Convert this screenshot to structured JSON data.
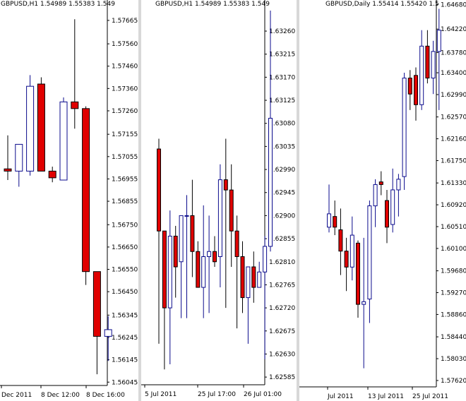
{
  "colors": {
    "bull": "#0a0a8c",
    "bear": "#e00000",
    "outline": "#000000",
    "axis": "#000000"
  },
  "chart_data": [
    {
      "type": "candlestick",
      "title": "GBPUSD,H1  1.54989 1.55383 1.549",
      "ylim": [
        1.5603,
        1.5775
      ],
      "y_ticks": [
        "1.57665",
        "1.57560",
        "1.57460",
        "1.57360",
        "1.57260",
        "1.57155",
        "1.57055",
        "1.56955",
        "1.56855",
        "1.56750",
        "1.56650",
        "1.56550",
        "1.56450",
        "1.56345",
        "1.56245",
        "1.56145",
        "1.56045"
      ],
      "x_labels": [
        "Dec 2011",
        "8 Dec 12:00",
        "8 Dec 16:00"
      ],
      "candles": [
        {
          "o": 1.57,
          "h": 1.5715,
          "l": 1.5695,
          "c": 1.5699
        },
        {
          "o": 1.5699,
          "h": 1.5711,
          "l": 1.5692,
          "c": 1.5711
        },
        {
          "o": 1.5699,
          "h": 1.5742,
          "l": 1.5697,
          "c": 1.5737
        },
        {
          "o": 1.5738,
          "h": 1.5741,
          "l": 1.5699,
          "c": 1.5699
        },
        {
          "o": 1.5699,
          "h": 1.5701,
          "l": 1.5694,
          "c": 1.5696
        },
        {
          "o": 1.5695,
          "h": 1.5732,
          "l": 1.5695,
          "c": 1.573
        },
        {
          "o": 1.573,
          "h": 1.5767,
          "l": 1.5718,
          "c": 1.5727
        },
        {
          "o": 1.5727,
          "h": 1.5728,
          "l": 1.5648,
          "c": 1.5654
        },
        {
          "o": 1.5654,
          "h": 1.5654,
          "l": 1.5608,
          "c": 1.5625
        },
        {
          "o": 1.5625,
          "h": 1.5634,
          "l": 1.5614,
          "c": 1.5628
        }
      ]
    },
    {
      "type": "candlestick",
      "title": "GBPUSD,H1  1.54989 1.55383 1.549",
      "ylim": [
        1.6257,
        1.633
      ],
      "y_ticks": [
        "1.63260",
        "1.63215",
        "1.63170",
        "1.63125",
        "1.63080",
        "1.63035",
        "1.62990",
        "1.62945",
        "1.62900",
        "1.62855",
        "1.62810",
        "1.62765",
        "1.62720",
        "1.62675",
        "1.62630",
        "1.62585"
      ],
      "x_labels": [
        "5 Jul 2011",
        "25 Jul 17:00",
        "26 Jul 01:00"
      ],
      "candles": [
        {
          "o": 1.6303,
          "h": 1.6305,
          "l": 1.6265,
          "c": 1.6287
        },
        {
          "o": 1.6287,
          "h": 1.6287,
          "l": 1.626,
          "c": 1.6272
        },
        {
          "o": 1.6272,
          "h": 1.6291,
          "l": 1.6261,
          "c": 1.6286
        },
        {
          "o": 1.6286,
          "h": 1.6288,
          "l": 1.6274,
          "c": 1.628
        },
        {
          "o": 1.6281,
          "h": 1.629,
          "l": 1.627,
          "c": 1.629
        },
        {
          "o": 1.629,
          "h": 1.6294,
          "l": 1.627,
          "c": 1.629
        },
        {
          "o": 1.629,
          "h": 1.6297,
          "l": 1.6278,
          "c": 1.6283
        },
        {
          "o": 1.6283,
          "h": 1.6285,
          "l": 1.6276,
          "c": 1.6276
        },
        {
          "o": 1.6276,
          "h": 1.6292,
          "l": 1.627,
          "c": 1.6282
        },
        {
          "o": 1.6282,
          "h": 1.629,
          "l": 1.6271,
          "c": 1.6283
        },
        {
          "o": 1.6283,
          "h": 1.6286,
          "l": 1.628,
          "c": 1.6281
        },
        {
          "o": 1.6282,
          "h": 1.63,
          "l": 1.6276,
          "c": 1.6297
        },
        {
          "o": 1.6297,
          "h": 1.6305,
          "l": 1.6272,
          "c": 1.6295
        },
        {
          "o": 1.6295,
          "h": 1.63,
          "l": 1.628,
          "c": 1.6287
        },
        {
          "o": 1.6287,
          "h": 1.629,
          "l": 1.6268,
          "c": 1.6282
        },
        {
          "o": 1.6282,
          "h": 1.6285,
          "l": 1.6271,
          "c": 1.6274
        },
        {
          "o": 1.6274,
          "h": 1.628,
          "l": 1.6265,
          "c": 1.628
        },
        {
          "o": 1.628,
          "h": 1.6283,
          "l": 1.6273,
          "c": 1.6276
        },
        {
          "o": 1.6276,
          "h": 1.6281,
          "l": 1.6276,
          "c": 1.6279
        },
        {
          "o": 1.6279,
          "h": 1.6286,
          "l": 1.6262,
          "c": 1.6284
        },
        {
          "o": 1.6284,
          "h": 1.633,
          "l": 1.6283,
          "c": 1.6309
        }
      ]
    },
    {
      "type": "candlestick",
      "title": "GBPUSD,Daily  1.55414 1.55420 1.5",
      "ylim": [
        1.575,
        1.647
      ],
      "y_ticks": [
        "1.64680",
        "1.64220",
        "1.63780",
        "1.63400",
        "1.62990",
        "1.62570",
        "1.62160",
        "1.61750",
        "1.61330",
        "1.60920",
        "1.60510",
        "1.60100",
        "1.59680",
        "1.59270",
        "1.58860",
        "1.58440",
        "1.58030",
        "1.57620"
      ],
      "x_labels": [
        "Jul 2011",
        "13 Jul 2011",
        "25 Jul 2011"
      ],
      "candles": [
        {
          "o": 1.605,
          "h": 1.613,
          "l": 1.604,
          "c": 1.6075
        },
        {
          "o": 1.607,
          "h": 1.61,
          "l": 1.6035,
          "c": 1.605
        },
        {
          "o": 1.6045,
          "h": 1.6085,
          "l": 1.596,
          "c": 1.6005
        },
        {
          "o": 1.6005,
          "h": 1.603,
          "l": 1.593,
          "c": 1.5975
        },
        {
          "o": 1.5975,
          "h": 1.607,
          "l": 1.595,
          "c": 1.6035
        },
        {
          "o": 1.602,
          "h": 1.6025,
          "l": 1.588,
          "c": 1.5905
        },
        {
          "o": 1.5905,
          "h": 1.603,
          "l": 1.5785,
          "c": 1.591
        },
        {
          "o": 1.5915,
          "h": 1.61,
          "l": 1.587,
          "c": 1.609
        },
        {
          "o": 1.609,
          "h": 1.614,
          "l": 1.605,
          "c": 1.613
        },
        {
          "o": 1.6135,
          "h": 1.6155,
          "l": 1.611,
          "c": 1.613
        },
        {
          "o": 1.61,
          "h": 1.612,
          "l": 1.602,
          "c": 1.605
        },
        {
          "o": 1.6055,
          "h": 1.616,
          "l": 1.604,
          "c": 1.612
        },
        {
          "o": 1.612,
          "h": 1.615,
          "l": 1.607,
          "c": 1.614
        },
        {
          "o": 1.6145,
          "h": 1.634,
          "l": 1.612,
          "c": 1.633
        },
        {
          "o": 1.633,
          "h": 1.6345,
          "l": 1.627,
          "c": 1.63
        },
        {
          "o": 1.6335,
          "h": 1.635,
          "l": 1.625,
          "c": 1.628
        },
        {
          "o": 1.628,
          "h": 1.642,
          "l": 1.627,
          "c": 1.639
        },
        {
          "o": 1.639,
          "h": 1.642,
          "l": 1.632,
          "c": 1.633
        },
        {
          "o": 1.633,
          "h": 1.64,
          "l": 1.63,
          "c": 1.638
        },
        {
          "o": 1.638,
          "h": 1.646,
          "l": 1.627,
          "c": 1.642
        }
      ]
    }
  ]
}
